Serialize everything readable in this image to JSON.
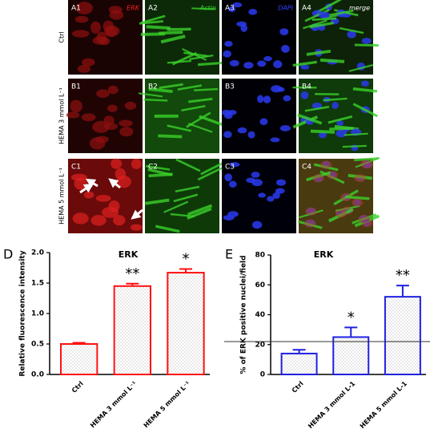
{
  "micrographs": {
    "channel_labels": [
      "ERK",
      "Actin",
      "DAPI",
      "merge"
    ],
    "row_labels": [
      "Ctrl",
      "HEMA 3 mmol L⁻¹",
      "HEMA 5 mmol L⁻¹"
    ],
    "panel_labels": [
      [
        "A1",
        "A2",
        "A3",
        "A4"
      ],
      [
        "B1",
        "B2",
        "B3",
        "B4"
      ],
      [
        "C1",
        "C2",
        "C3",
        "C4"
      ]
    ]
  },
  "chart_data": [
    {
      "panel": "D",
      "type": "bar",
      "title": "ERK",
      "y_label": "Relative fluorescence intensity",
      "categories": [
        "Ctrl",
        "HEMA 3 mmol L⁻¹",
        "HEMA 5 mmol L⁻¹"
      ],
      "values": [
        0.5,
        1.45,
        1.67
      ],
      "errors": [
        0.02,
        0.04,
        0.06
      ],
      "annotations": [
        null,
        "**",
        "*"
      ],
      "color": "#ff1010",
      "ylim": [
        0,
        2
      ],
      "yticks": [
        {
          "value": 0,
          "label": "0.0"
        },
        0.5,
        {
          "value": 1,
          "label": "1.0"
        },
        1.5,
        {
          "value": 2,
          "label": "2.0"
        }
      ]
    },
    {
      "panel": "E",
      "type": "bar",
      "title": "ERK",
      "y_label": "% of ERK positive nuclei/field",
      "categories": [
        "Ctrl",
        "HEMA 3 mmol L-1",
        "HEMA 5 mmol L-1"
      ],
      "values": [
        14,
        25,
        52
      ],
      "errors": [
        2.5,
        6.5,
        7.5
      ],
      "annotations": [
        null,
        "*",
        "**"
      ],
      "color": "#2020e0",
      "reference_line": 22,
      "ylim": [
        0,
        80
      ],
      "yticks": [
        0,
        20,
        40,
        60,
        80
      ]
    }
  ]
}
